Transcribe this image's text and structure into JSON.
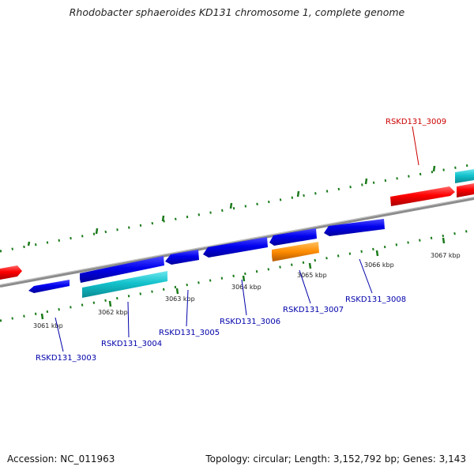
{
  "title": "Rhodobacter sphaeroides KD131 chromosome 1, complete genome",
  "footer": {
    "accession": "Accession: NC_011963",
    "summary": "Topology: circular; Length: 3,152,792 bp; Genes: 3,143"
  },
  "colors": {
    "forward_blue": "#0000ee",
    "cyan": "#13c2cc",
    "red": "#ff0000",
    "orange": "#ff8c00",
    "backbone": "#888888",
    "tick_green": "#1a7a1a",
    "label_blue": "#0000aa",
    "label_red": "#cc0000"
  },
  "axis": {
    "unit": "kbp",
    "kbp_ticks": [
      {
        "value": 3061,
        "label": "3061 kbp"
      },
      {
        "value": 3062,
        "label": "3062 kbp"
      },
      {
        "value": 3063,
        "label": "3063 kbp"
      },
      {
        "value": 3064,
        "label": "3064 kbp"
      },
      {
        "value": 3065,
        "label": "3065 kbp"
      },
      {
        "value": 3066,
        "label": "3066 kbp"
      },
      {
        "value": 3067,
        "label": "3067 kbp"
      }
    ]
  },
  "gene_labels": [
    {
      "id": "RSKD131_3003",
      "text": "RSKD131_3003",
      "color": "label_blue"
    },
    {
      "id": "RSKD131_3004",
      "text": "RSKD131_3004",
      "color": "label_blue"
    },
    {
      "id": "RSKD131_3005",
      "text": "RSKD131_3005",
      "color": "label_blue"
    },
    {
      "id": "RSKD131_3006",
      "text": "RSKD131_3006",
      "color": "label_blue"
    },
    {
      "id": "RSKD131_3007",
      "text": "RSKD131_3007",
      "color": "label_blue"
    },
    {
      "id": "RSKD131_3008",
      "text": "RSKD131_3008",
      "color": "label_blue"
    },
    {
      "id": "RSKD131_3009",
      "text": "RSKD131_3009",
      "color": "label_red"
    }
  ]
}
